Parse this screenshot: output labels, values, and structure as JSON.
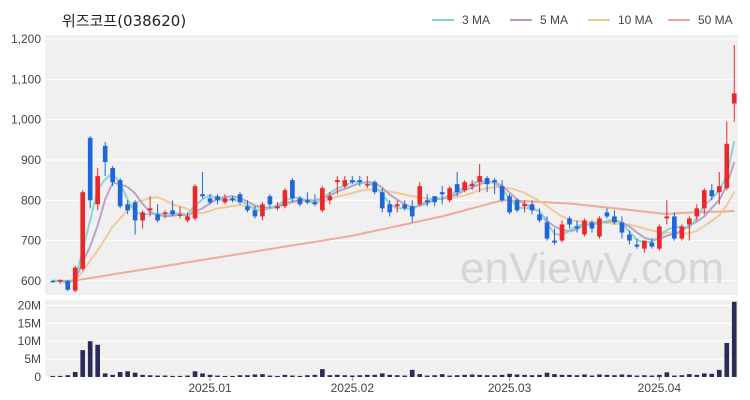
{
  "chart_data": {
    "type": "candlestick",
    "title": "위즈코프(038620)",
    "watermark": "enViewV.com",
    "legend": {
      "position": "top-right",
      "items": [
        {
          "name": "3 MA",
          "color": "#7fd3cf"
        },
        {
          "name": "5 MA",
          "color": "#b49ac4"
        },
        {
          "name": "10 MA",
          "color": "#f2c490"
        },
        {
          "name": "50 MA",
          "color": "#f0a290"
        }
      ]
    },
    "colors": {
      "up": "#e8282b",
      "down": "#1f66d8",
      "volume": "#2b2b5a",
      "grid_bg": "#f0f0f0"
    },
    "price_axis": {
      "ticks": [
        600,
        700,
        800,
        900,
        1000,
        1100,
        1200
      ],
      "labels": [
        "600",
        "700",
        "800",
        "900",
        "1,000",
        "1,100",
        "1,200"
      ],
      "ylim": [
        565,
        1210
      ]
    },
    "volume_axis": {
      "ticks": [
        0,
        5000000,
        10000000,
        15000000,
        20000000
      ],
      "labels": [
        "0",
        "5M",
        "10M",
        "15M",
        "20M"
      ],
      "ylim": [
        0,
        21500000
      ]
    },
    "x_axis": {
      "labels": [
        {
          "text": "2025.01",
          "index": 21
        },
        {
          "text": "2025.02",
          "index": 40
        },
        {
          "text": "2025.03",
          "index": 61
        },
        {
          "text": "2025.04",
          "index": 81
        }
      ]
    },
    "count": 83,
    "candles": [
      [
        600,
        602,
        598,
        598,
        0.3
      ],
      [
        598,
        604,
        592,
        602,
        0.3
      ],
      [
        600,
        602,
        575,
        578,
        0.5
      ],
      [
        576,
        638,
        572,
        633,
        1.4
      ],
      [
        630,
        825,
        625,
        820,
        7.5
      ],
      [
        955,
        960,
        780,
        800,
        10.0
      ],
      [
        790,
        880,
        775,
        860,
        9.0
      ],
      [
        935,
        945,
        860,
        895,
        1.0
      ],
      [
        880,
        885,
        835,
        845,
        0.6
      ],
      [
        850,
        855,
        780,
        785,
        1.4
      ],
      [
        790,
        800,
        765,
        775,
        1.6
      ],
      [
        795,
        800,
        715,
        750,
        1.2
      ],
      [
        750,
        775,
        730,
        770,
        0.6
      ],
      [
        775,
        810,
        760,
        780,
        0.5
      ],
      [
        765,
        790,
        745,
        750,
        0.4
      ],
      [
        770,
        775,
        755,
        770,
        0.4
      ],
      [
        775,
        800,
        760,
        765,
        0.3
      ],
      [
        765,
        785,
        755,
        765,
        0.3
      ],
      [
        750,
        770,
        745,
        760,
        0.4
      ],
      [
        755,
        840,
        750,
        835,
        1.6
      ],
      [
        815,
        870,
        805,
        810,
        1.0
      ],
      [
        805,
        815,
        790,
        795,
        0.6
      ],
      [
        810,
        815,
        790,
        800,
        0.4
      ],
      [
        795,
        815,
        790,
        805,
        0.3
      ],
      [
        805,
        810,
        795,
        800,
        0.3
      ],
      [
        815,
        820,
        790,
        795,
        0.5
      ],
      [
        785,
        800,
        770,
        775,
        0.5
      ],
      [
        775,
        785,
        755,
        760,
        0.7
      ],
      [
        760,
        795,
        750,
        790,
        0.8
      ],
      [
        810,
        815,
        780,
        790,
        0.4
      ],
      [
        780,
        795,
        775,
        785,
        0.3
      ],
      [
        785,
        830,
        780,
        825,
        0.6
      ],
      [
        850,
        855,
        795,
        805,
        0.4
      ],
      [
        805,
        810,
        785,
        790,
        0.3
      ],
      [
        800,
        820,
        790,
        795,
        0.5
      ],
      [
        795,
        815,
        785,
        790,
        0.6
      ],
      [
        775,
        835,
        770,
        830,
        2.2
      ],
      [
        800,
        820,
        790,
        810,
        0.5
      ],
      [
        845,
        860,
        815,
        850,
        0.6
      ],
      [
        835,
        860,
        830,
        850,
        0.5
      ],
      [
        850,
        860,
        840,
        845,
        0.4
      ],
      [
        850,
        860,
        835,
        845,
        0.5
      ],
      [
        840,
        860,
        830,
        840,
        0.6
      ],
      [
        845,
        850,
        815,
        820,
        0.6
      ],
      [
        820,
        830,
        770,
        780,
        1.0
      ],
      [
        790,
        800,
        760,
        770,
        0.6
      ],
      [
        785,
        800,
        770,
        790,
        0.5
      ],
      [
        790,
        800,
        775,
        780,
        0.4
      ],
      [
        785,
        800,
        745,
        760,
        2.0
      ],
      [
        790,
        845,
        785,
        835,
        0.8
      ],
      [
        800,
        815,
        785,
        795,
        0.4
      ],
      [
        810,
        810,
        785,
        795,
        0.5
      ],
      [
        820,
        835,
        790,
        815,
        0.8
      ],
      [
        800,
        835,
        795,
        830,
        0.4
      ],
      [
        840,
        870,
        810,
        820,
        0.5
      ],
      [
        825,
        850,
        820,
        845,
        0.6
      ],
      [
        835,
        850,
        825,
        840,
        0.7
      ],
      [
        845,
        890,
        820,
        860,
        0.6
      ],
      [
        855,
        860,
        820,
        840,
        0.5
      ],
      [
        850,
        855,
        815,
        845,
        0.5
      ],
      [
        835,
        850,
        795,
        800,
        0.6
      ],
      [
        810,
        815,
        765,
        770,
        0.9
      ],
      [
        800,
        805,
        770,
        775,
        0.7
      ],
      [
        785,
        800,
        770,
        790,
        0.6
      ],
      [
        790,
        800,
        765,
        775,
        0.5
      ],
      [
        765,
        780,
        745,
        750,
        0.6
      ],
      [
        745,
        760,
        700,
        705,
        1.2
      ],
      [
        700,
        730,
        690,
        695,
        0.8
      ],
      [
        700,
        750,
        695,
        740,
        0.6
      ],
      [
        755,
        760,
        730,
        740,
        0.6
      ],
      [
        735,
        750,
        720,
        730,
        0.5
      ],
      [
        715,
        755,
        710,
        750,
        0.7
      ],
      [
        745,
        750,
        720,
        730,
        0.4
      ],
      [
        710,
        760,
        705,
        755,
        0.7
      ],
      [
        770,
        780,
        755,
        760,
        0.6
      ],
      [
        760,
        775,
        740,
        745,
        0.5
      ],
      [
        745,
        760,
        705,
        720,
        0.7
      ],
      [
        715,
        725,
        690,
        700,
        0.6
      ],
      [
        690,
        705,
        680,
        685,
        0.4
      ],
      [
        680,
        700,
        670,
        700,
        0.5
      ],
      [
        695,
        705,
        680,
        685,
        0.4
      ],
      [
        680,
        740,
        675,
        735,
        0.6
      ],
      [
        755,
        800,
        740,
        760,
        1.3
      ]
    ],
    "tail_candles": [
      [
        760,
        770,
        700,
        705,
        0.4
      ],
      [
        705,
        740,
        700,
        735,
        0.5
      ],
      [
        740,
        760,
        700,
        755,
        0.8
      ],
      [
        760,
        790,
        750,
        780,
        0.6
      ],
      [
        780,
        830,
        765,
        825,
        1.0
      ],
      [
        825,
        840,
        800,
        810,
        0.9
      ],
      [
        820,
        870,
        790,
        835,
        2.0
      ],
      [
        830,
        995,
        825,
        940,
        9.5
      ],
      [
        1040,
        1185,
        995,
        1065,
        21.0
      ]
    ],
    "ma3": [
      600,
      600,
      593,
      604,
      677,
      751,
      827,
      852,
      867,
      842,
      802,
      770,
      765,
      766,
      766,
      765,
      768,
      767,
      765,
      787,
      802,
      813,
      802,
      800,
      802,
      798,
      790,
      775,
      775,
      780,
      788,
      800,
      805,
      807,
      797,
      795,
      805,
      818,
      830,
      835,
      846,
      845,
      843,
      835,
      815,
      790,
      780,
      780,
      777,
      790,
      797,
      808,
      802,
      813,
      823,
      832,
      840,
      848,
      848,
      842,
      828,
      805,
      782,
      780,
      780,
      772,
      743,
      717,
      713,
      725,
      737,
      740,
      738,
      745,
      748,
      753,
      742,
      722,
      702,
      695,
      697,
      708,
      727
    ],
    "ma5": [
      600,
      600,
      598,
      603,
      646,
      686,
      738,
      802,
      844,
      840,
      833,
      817,
      791,
      771,
      764,
      760,
      762,
      764,
      762,
      772,
      780,
      792,
      804,
      808,
      810,
      805,
      797,
      787,
      783,
      781,
      784,
      792,
      797,
      800,
      801,
      799,
      806,
      811,
      822,
      828,
      836,
      842,
      845,
      843,
      831,
      814,
      802,
      790,
      782,
      787,
      792,
      802,
      805,
      810,
      815,
      825,
      832,
      840,
      845,
      845,
      836,
      819,
      802,
      791,
      782,
      772,
      749,
      735,
      727,
      723,
      728,
      740,
      741,
      744,
      746,
      751,
      744,
      735,
      720,
      707,
      702,
      704,
      712
    ],
    "ma10": [
      600,
      600,
      600,
      601,
      623,
      650,
      676,
      705,
      735,
      755,
      775,
      795,
      800,
      805,
      808,
      800,
      790,
      785,
      778,
      770,
      768,
      774,
      780,
      782,
      786,
      788,
      786,
      782,
      780,
      780,
      783,
      790,
      794,
      797,
      796,
      793,
      796,
      803,
      809,
      813,
      818,
      823,
      826,
      827,
      825,
      821,
      818,
      814,
      810,
      808,
      804,
      803,
      804,
      806,
      808,
      812,
      818,
      825,
      830,
      832,
      832,
      830,
      825,
      818,
      808,
      798,
      786,
      772,
      760,
      752,
      748,
      746,
      746,
      746,
      744,
      742,
      741,
      740,
      735,
      730,
      725,
      722,
      720
    ],
    "ma50": [
      600,
      600,
      600,
      601,
      604,
      607,
      610,
      613,
      616,
      619,
      622,
      625,
      628,
      631,
      634,
      637,
      640,
      643,
      646,
      649,
      652,
      655,
      658,
      661,
      664,
      667,
      670,
      673,
      676,
      679,
      682,
      685,
      688,
      691,
      694,
      697,
      700,
      703,
      706,
      709,
      712,
      716,
      720,
      724,
      728,
      732,
      736,
      740,
      744,
      748,
      752,
      756,
      760,
      765,
      770,
      775,
      780,
      785,
      790,
      795,
      800,
      800,
      799,
      798,
      797,
      796,
      795,
      794,
      793,
      792,
      790,
      788,
      786,
      784,
      782,
      780,
      778,
      776,
      774,
      772,
      770,
      768,
      766
    ]
  }
}
